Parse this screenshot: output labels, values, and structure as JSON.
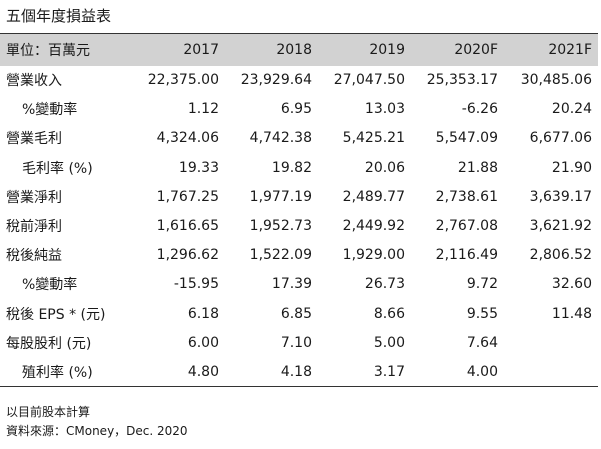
{
  "title": "五個年度損益表",
  "table": {
    "header": [
      "單位：百萬元",
      "2017",
      "2018",
      "2019",
      "2020F",
      "2021F"
    ],
    "rows": [
      {
        "label": "營業收入",
        "indent": false,
        "values": [
          "22,375.00",
          "23,929.64",
          "27,047.50",
          "25,353.17",
          "30,485.06"
        ]
      },
      {
        "label": "%變動率",
        "indent": true,
        "values": [
          "1.12",
          "6.95",
          "13.03",
          "-6.26",
          "20.24"
        ]
      },
      {
        "label": "營業毛利",
        "indent": false,
        "values": [
          "4,324.06",
          "4,742.38",
          "5,425.21",
          "5,547.09",
          "6,677.06"
        ]
      },
      {
        "label": "毛利率 (%)",
        "indent": true,
        "values": [
          "19.33",
          "19.82",
          "20.06",
          "21.88",
          "21.90"
        ]
      },
      {
        "label": "營業淨利",
        "indent": false,
        "values": [
          "1,767.25",
          "1,977.19",
          "2,489.77",
          "2,738.61",
          "3,639.17"
        ]
      },
      {
        "label": "稅前淨利",
        "indent": false,
        "values": [
          "1,616.65",
          "1,952.73",
          "2,449.92",
          "2,767.08",
          "3,621.92"
        ]
      },
      {
        "label": "稅後純益",
        "indent": false,
        "values": [
          "1,296.62",
          "1,522.09",
          "1,929.00",
          "2,116.49",
          "2,806.52"
        ]
      },
      {
        "label": "%變動率",
        "indent": true,
        "values": [
          "-15.95",
          "17.39",
          "26.73",
          "9.72",
          "32.60"
        ]
      },
      {
        "label": "稅後 EPS * (元)",
        "indent": false,
        "values": [
          "6.18",
          "6.85",
          "8.66",
          "9.55",
          "11.48"
        ]
      },
      {
        "label": "每股股利 (元)",
        "indent": false,
        "values": [
          "6.00",
          "7.10",
          "5.00",
          "7.64",
          ""
        ]
      },
      {
        "label": "殖利率 (%)",
        "indent": true,
        "values": [
          "4.80",
          "4.18",
          "3.17",
          "4.00",
          ""
        ]
      }
    ]
  },
  "footnotes": [
    "以目前股本計算",
    "資料來源：CMoney，Dec. 2020"
  ]
}
